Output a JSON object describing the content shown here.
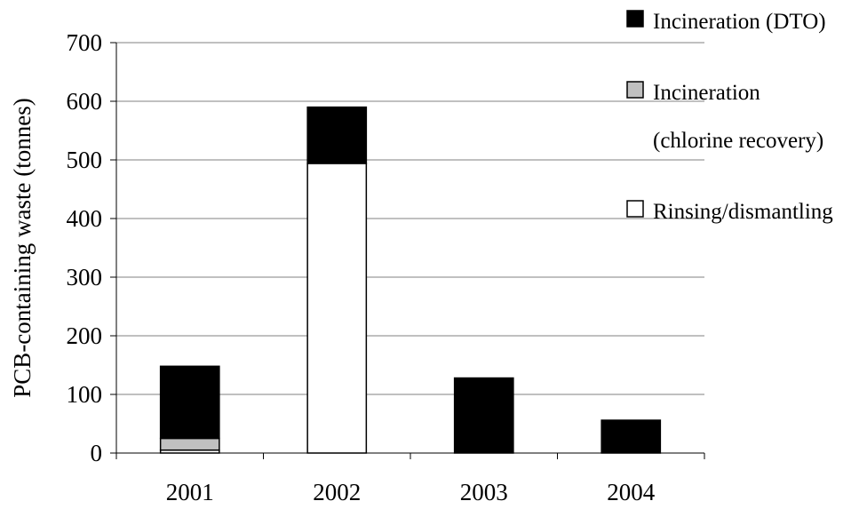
{
  "chart_data": {
    "type": "bar",
    "stacked": true,
    "categories": [
      "2001",
      "2002",
      "2003",
      "2004"
    ],
    "series": [
      {
        "name": "Rinsing/dismantling",
        "values": [
          5,
          494,
          0,
          0
        ],
        "color": "#ffffff"
      },
      {
        "name": "Incineration (chlorine recovery)",
        "legend_lines": [
          "Incineration",
          "(chlorine recovery)"
        ],
        "values": [
          20,
          0,
          0,
          0
        ],
        "color": "#c0c0c0"
      },
      {
        "name": "Incineration (DTO)",
        "values": [
          123,
          96,
          128,
          56
        ],
        "color": "#000000"
      }
    ],
    "title": "",
    "xlabel": "",
    "ylabel": "PCB-containing waste (tonnes)",
    "ylim": [
      0,
      700
    ],
    "yticks": [
      0,
      100,
      200,
      300,
      400,
      500,
      600,
      700
    ],
    "grid": true,
    "legend_position": "top-right",
    "legend_order": [
      2,
      1,
      0
    ]
  }
}
